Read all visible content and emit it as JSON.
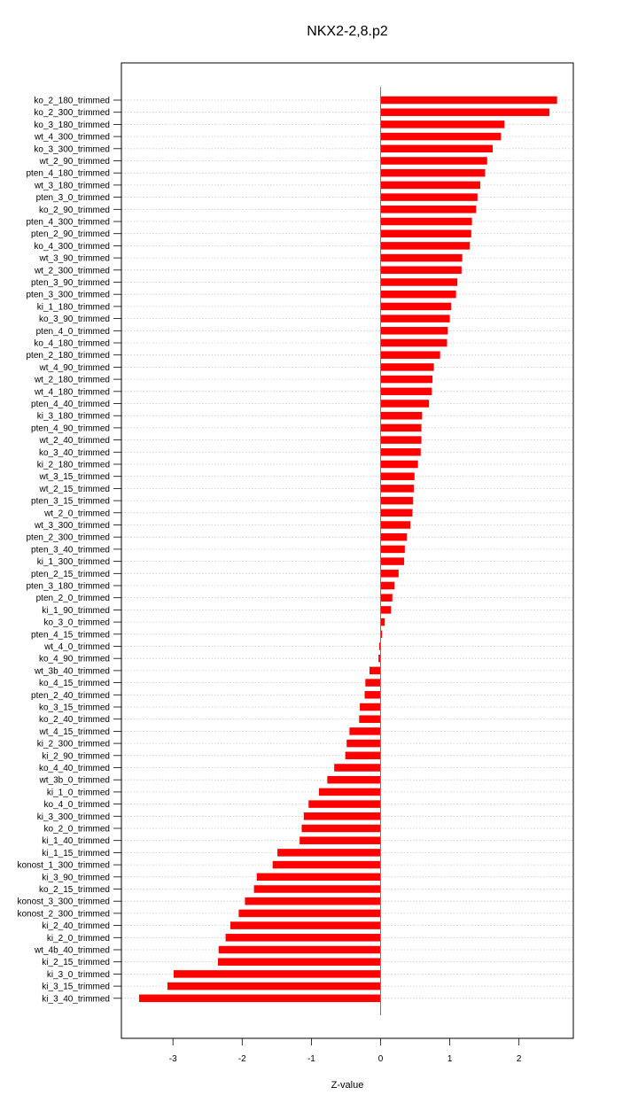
{
  "chart_data": {
    "type": "bar",
    "orientation": "horizontal",
    "title": "NKX2-2,8.p2",
    "xlabel": "Z-value",
    "ylabel": "",
    "xlim": [
      -3.55,
      2.8
    ],
    "xticks": [
      -3,
      -2,
      -1,
      0,
      1,
      2
    ],
    "grid": "horizontal dotted",
    "bar_color": "#ff0000",
    "zero_line_color": "#00cc00",
    "categories": [
      "ko_2_180_trimmed",
      "ko_2_300_trimmed",
      "ko_3_180_trimmed",
      "wt_4_300_trimmed",
      "ko_3_300_trimmed",
      "wt_2_90_trimmed",
      "pten_4_180_trimmed",
      "wt_3_180_trimmed",
      "pten_3_0_trimmed",
      "ko_2_90_trimmed",
      "pten_4_300_trimmed",
      "pten_2_90_trimmed",
      "ko_4_300_trimmed",
      "wt_3_90_trimmed",
      "wt_2_300_trimmed",
      "pten_3_90_trimmed",
      "pten_3_300_trimmed",
      "ki_1_180_trimmed",
      "ko_3_90_trimmed",
      "pten_4_0_trimmed",
      "ko_4_180_trimmed",
      "pten_2_180_trimmed",
      "wt_4_90_trimmed",
      "wt_2_180_trimmed",
      "wt_4_180_trimmed",
      "pten_4_40_trimmed",
      "ki_3_180_trimmed",
      "pten_4_90_trimmed",
      "wt_2_40_trimmed",
      "ko_3_40_trimmed",
      "ki_2_180_trimmed",
      "wt_3_15_trimmed",
      "wt_2_15_trimmed",
      "pten_3_15_trimmed",
      "wt_2_0_trimmed",
      "wt_3_300_trimmed",
      "pten_2_300_trimmed",
      "pten_3_40_trimmed",
      "ki_1_300_trimmed",
      "pten_2_15_trimmed",
      "pten_3_180_trimmed",
      "pten_2_0_trimmed",
      "ki_1_90_trimmed",
      "ko_3_0_trimmed",
      "pten_4_15_trimmed",
      "wt_4_0_trimmed",
      "ko_4_90_trimmed",
      "wt_3b_40_trimmed",
      "ko_4_15_trimmed",
      "pten_2_40_trimmed",
      "ko_3_15_trimmed",
      "ko_2_40_trimmed",
      "wt_4_15_trimmed",
      "ki_2_300_trimmed",
      "ki_2_90_trimmed",
      "ko_4_40_trimmed",
      "wt_3b_0_trimmed",
      "ki_1_0_trimmed",
      "ko_4_0_trimmed",
      "ki_3_300_trimmed",
      "ko_2_0_trimmed",
      "ki_1_40_trimmed",
      "ki_1_15_trimmed",
      "konost_1_300_trimmed",
      "ki_3_90_trimmed",
      "ko_2_15_trimmed",
      "konost_3_300_trimmed",
      "konost_2_300_trimmed",
      "ki_2_40_trimmed",
      "ki_2_0_trimmed",
      "wt_4b_40_trimmed",
      "ki_2_15_trimmed",
      "ki_3_0_trimmed",
      "ki_3_15_trimmed",
      "ki_3_40_trimmed"
    ],
    "values": [
      2.55,
      2.44,
      1.79,
      1.74,
      1.62,
      1.54,
      1.51,
      1.44,
      1.4,
      1.38,
      1.32,
      1.31,
      1.29,
      1.18,
      1.17,
      1.11,
      1.09,
      1.02,
      1.0,
      0.97,
      0.96,
      0.86,
      0.77,
      0.75,
      0.74,
      0.7,
      0.6,
      0.59,
      0.59,
      0.58,
      0.54,
      0.49,
      0.48,
      0.47,
      0.46,
      0.43,
      0.38,
      0.35,
      0.34,
      0.26,
      0.2,
      0.17,
      0.15,
      0.06,
      0.02,
      -0.02,
      -0.03,
      -0.16,
      -0.22,
      -0.23,
      -0.3,
      -0.31,
      -0.45,
      -0.49,
      -0.51,
      -0.67,
      -0.77,
      -0.89,
      -1.04,
      -1.11,
      -1.14,
      -1.17,
      -1.49,
      -1.56,
      -1.79,
      -1.83,
      -1.96,
      -2.05,
      -2.17,
      -2.24,
      -2.34,
      -2.35,
      -2.99,
      -3.08,
      -3.49
    ]
  }
}
